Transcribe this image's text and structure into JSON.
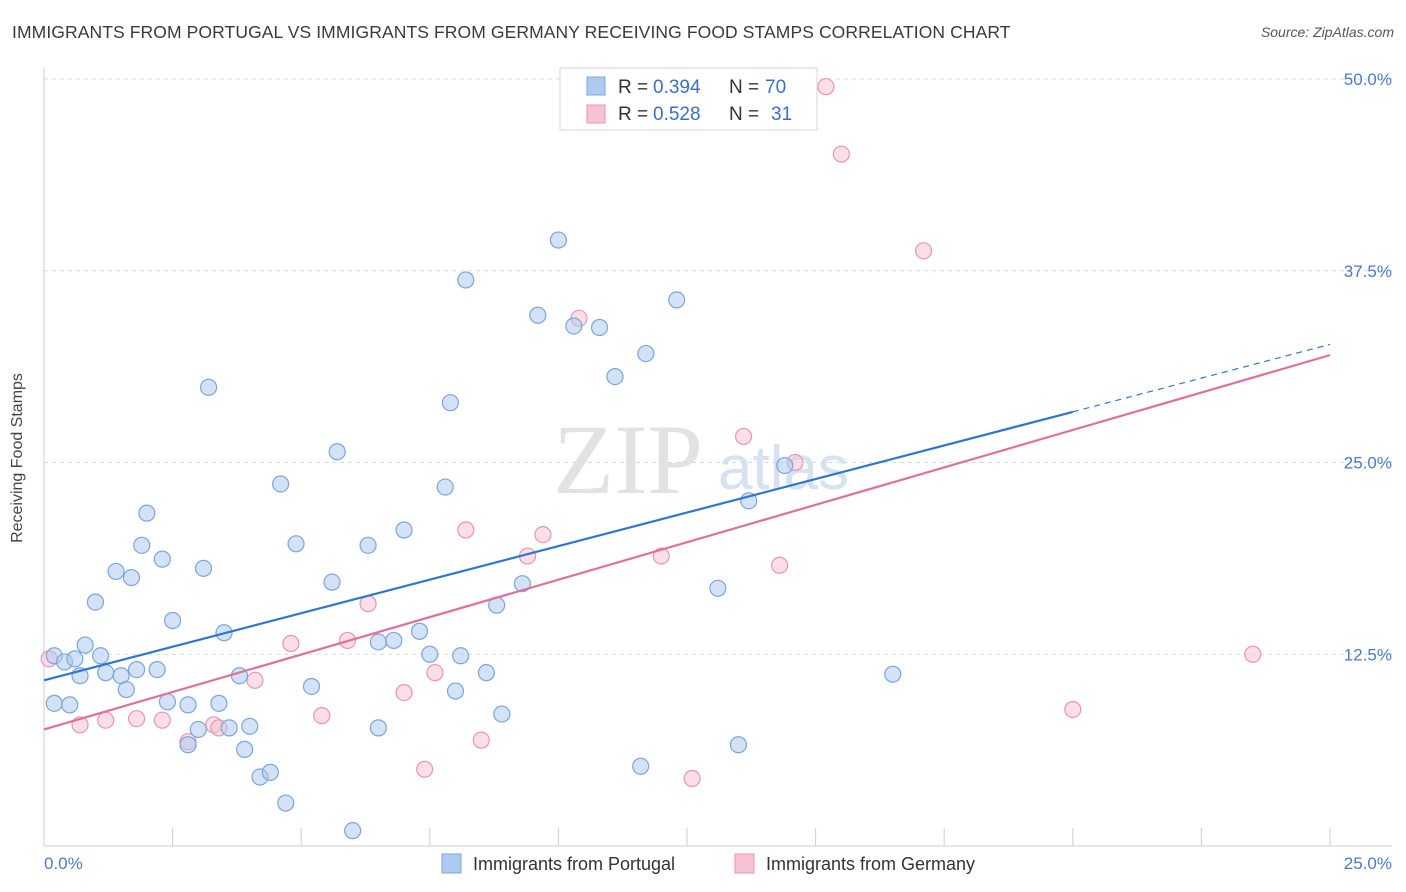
{
  "title": "IMMIGRANTS FROM PORTUGAL VS IMMIGRANTS FROM GERMANY RECEIVING FOOD STAMPS CORRELATION CHART",
  "source": "Source: ZipAtlas.com",
  "watermark": {
    "zip": "ZIP",
    "atlas": "atlas"
  },
  "colors": {
    "blue_fill": "#aecbef",
    "blue_stroke": "#7aa6dc",
    "blue_line": "#2f76d2",
    "pink_fill": "#f7c3d3",
    "pink_stroke": "#e996b1",
    "pink_line": "#e0709a",
    "grid": "#d9d9d9",
    "tick_text": "#4a7cc4"
  },
  "legend": {
    "rows": [
      {
        "r_label": "R =",
        "r_value": "0.394",
        "n_label": "N =",
        "n_value": "70"
      },
      {
        "r_label": "R =",
        "r_value": "0.528",
        "n_label": "N =",
        "n_value": "31"
      }
    ]
  },
  "bottom_legend": [
    "Immigrants from Portugal",
    "Immigrants from Germany"
  ],
  "chart_data": {
    "type": "scatter",
    "title": "IMMIGRANTS FROM PORTUGAL VS IMMIGRANTS FROM GERMANY RECEIVING FOOD STAMPS CORRELATION CHART",
    "xlabel": "",
    "ylabel": "Receiving Food Stamps",
    "xlim": [
      0,
      25
    ],
    "ylim": [
      0,
      50
    ],
    "x_tick_labels": [
      "0.0%",
      "25.0%"
    ],
    "y_ticks": [
      12.5,
      25.0,
      37.5,
      50.0
    ],
    "y_tick_labels": [
      "12.5%",
      "25.0%",
      "37.5%",
      "50.0%"
    ],
    "grid": true,
    "series": [
      {
        "name": "Immigrants from Portugal",
        "color": "blue",
        "trend": {
          "x": [
            0,
            20
          ],
          "y": [
            10.8,
            28.3
          ],
          "dashed_extension": {
            "x": [
              20,
              25
            ],
            "y": [
              28.3,
              32.7
            ]
          }
        },
        "points": [
          [
            0.2,
            12.4
          ],
          [
            0.4,
            12.0
          ],
          [
            0.6,
            12.2
          ],
          [
            0.2,
            9.3
          ],
          [
            0.5,
            9.2
          ],
          [
            0.7,
            11.1
          ],
          [
            0.8,
            13.1
          ],
          [
            1.0,
            15.9
          ],
          [
            1.1,
            12.4
          ],
          [
            1.2,
            11.3
          ],
          [
            1.4,
            17.9
          ],
          [
            1.5,
            11.1
          ],
          [
            1.6,
            10.2
          ],
          [
            1.7,
            17.5
          ],
          [
            1.8,
            11.5
          ],
          [
            1.9,
            19.6
          ],
          [
            2.0,
            21.7
          ],
          [
            2.2,
            11.5
          ],
          [
            2.3,
            18.7
          ],
          [
            2.4,
            9.4
          ],
          [
            2.5,
            14.7
          ],
          [
            2.8,
            6.6
          ],
          [
            2.8,
            9.2
          ],
          [
            3.0,
            7.6
          ],
          [
            3.1,
            18.1
          ],
          [
            3.2,
            29.9
          ],
          [
            3.4,
            9.3
          ],
          [
            3.5,
            13.9
          ],
          [
            3.6,
            7.7
          ],
          [
            3.8,
            11.1
          ],
          [
            3.9,
            6.3
          ],
          [
            4.0,
            7.8
          ],
          [
            4.2,
            4.5
          ],
          [
            4.4,
            4.8
          ],
          [
            4.6,
            23.6
          ],
          [
            4.7,
            2.8
          ],
          [
            4.9,
            19.7
          ],
          [
            5.2,
            10.4
          ],
          [
            5.6,
            17.2
          ],
          [
            5.7,
            25.7
          ],
          [
            6.0,
            1.0
          ],
          [
            6.3,
            19.6
          ],
          [
            6.5,
            7.7
          ],
          [
            6.5,
            13.3
          ],
          [
            6.8,
            13.4
          ],
          [
            7.0,
            20.6
          ],
          [
            7.3,
            14.0
          ],
          [
            7.5,
            12.5
          ],
          [
            7.8,
            23.4
          ],
          [
            7.9,
            28.9
          ],
          [
            8.0,
            10.1
          ],
          [
            8.1,
            12.4
          ],
          [
            8.2,
            36.9
          ],
          [
            8.6,
            11.3
          ],
          [
            8.8,
            15.7
          ],
          [
            8.9,
            8.6
          ],
          [
            9.3,
            17.1
          ],
          [
            9.6,
            34.6
          ],
          [
            10.0,
            39.5
          ],
          [
            10.3,
            33.9
          ],
          [
            10.8,
            33.8
          ],
          [
            11.1,
            30.6
          ],
          [
            11.6,
            5.2
          ],
          [
            11.7,
            32.1
          ],
          [
            12.3,
            35.6
          ],
          [
            13.1,
            16.8
          ],
          [
            13.5,
            6.6
          ],
          [
            13.7,
            22.5
          ],
          [
            16.5,
            11.2
          ],
          [
            14.4,
            24.8
          ]
        ]
      },
      {
        "name": "Immigrants from Germany",
        "color": "pink",
        "trend": {
          "x": [
            0,
            25
          ],
          "y": [
            7.6,
            32.0
          ]
        },
        "points": [
          [
            0.1,
            12.2
          ],
          [
            0.7,
            7.9
          ],
          [
            1.2,
            8.2
          ],
          [
            1.8,
            8.3
          ],
          [
            2.3,
            8.2
          ],
          [
            2.8,
            6.8
          ],
          [
            3.3,
            7.9
          ],
          [
            3.4,
            7.7
          ],
          [
            4.1,
            10.8
          ],
          [
            4.8,
            13.2
          ],
          [
            5.4,
            8.5
          ],
          [
            5.9,
            13.4
          ],
          [
            6.3,
            15.8
          ],
          [
            7.0,
            10.0
          ],
          [
            7.4,
            5.0
          ],
          [
            7.6,
            11.3
          ],
          [
            8.2,
            20.6
          ],
          [
            8.5,
            6.9
          ],
          [
            9.4,
            18.9
          ],
          [
            9.7,
            20.3
          ],
          [
            10.4,
            34.4
          ],
          [
            12.0,
            18.9
          ],
          [
            13.6,
            26.7
          ],
          [
            14.3,
            18.3
          ],
          [
            14.6,
            25.0
          ],
          [
            15.2,
            49.5
          ],
          [
            15.5,
            45.1
          ],
          [
            17.1,
            38.8
          ],
          [
            20.0,
            8.9
          ],
          [
            23.5,
            12.5
          ],
          [
            12.6,
            4.4
          ]
        ]
      }
    ]
  }
}
